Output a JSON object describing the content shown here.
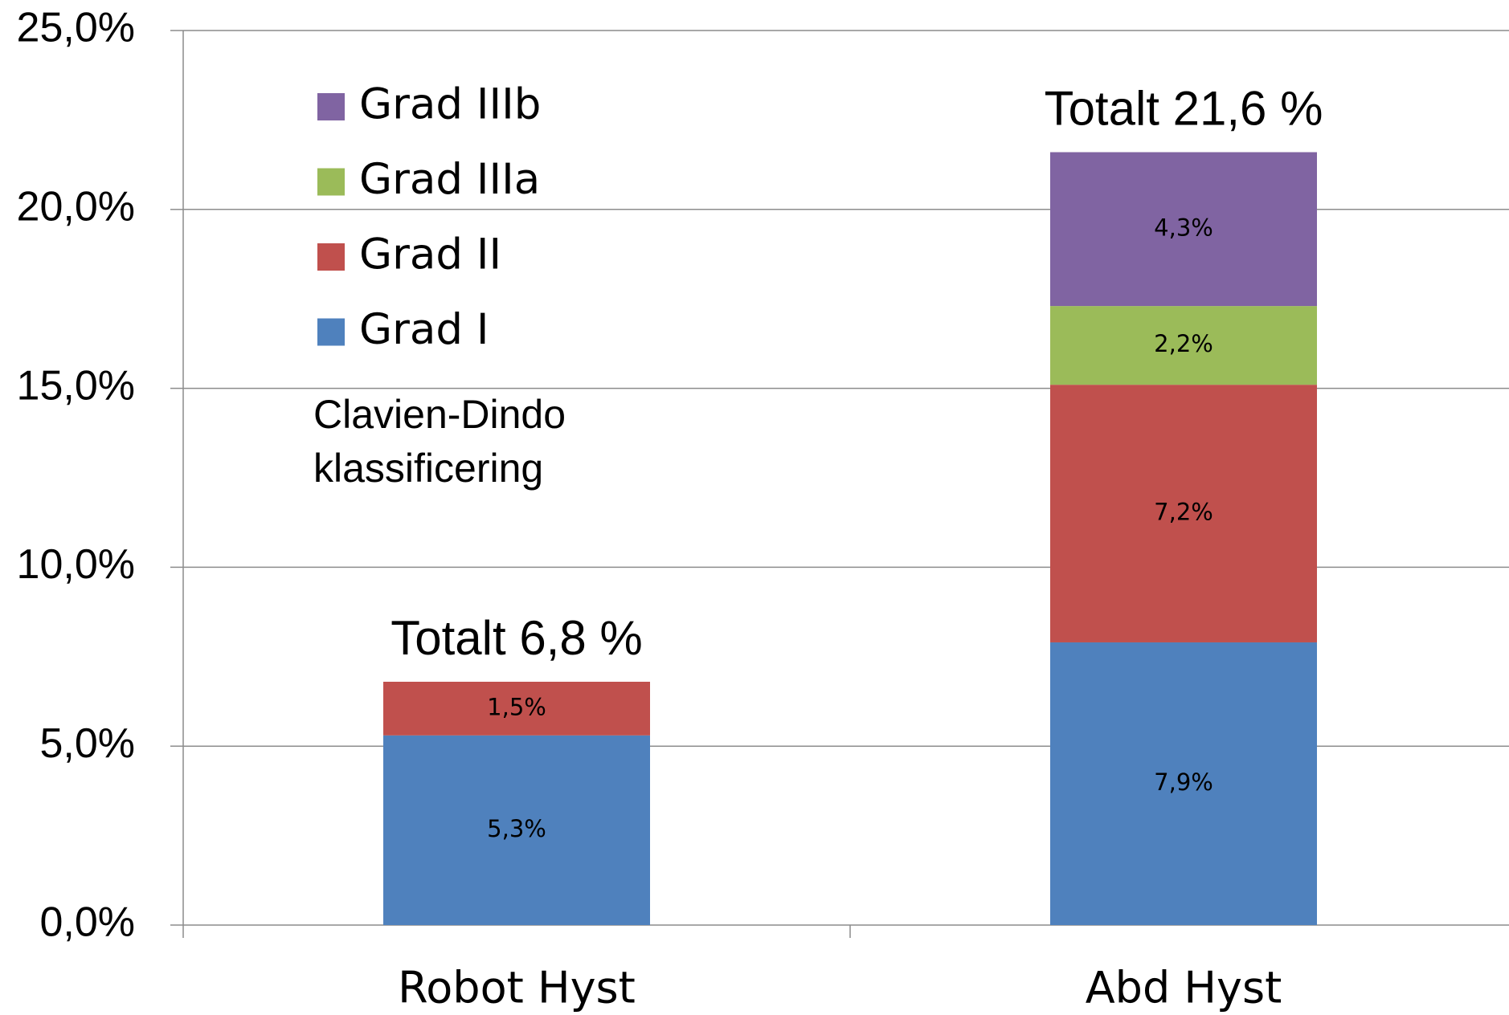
{
  "chart_data": {
    "type": "stacked_bar",
    "categories": [
      "Robot Hyst",
      "Abd Hyst"
    ],
    "series": [
      {
        "name": "Grad I",
        "color": "#4f81bd",
        "values": [
          5.3,
          7.9
        ],
        "value_labels": [
          "5,3%",
          "7,9%"
        ]
      },
      {
        "name": "Grad II",
        "color": "#c0504d",
        "values": [
          1.5,
          7.2
        ],
        "value_labels": [
          "1,5%",
          "7,2%"
        ]
      },
      {
        "name": "Grad IIIa",
        "color": "#9bbb59",
        "values": [
          null,
          2.2
        ],
        "value_labels": [
          null,
          "2,2%"
        ]
      },
      {
        "name": "Grad IIIb",
        "color": "#8064a2",
        "values": [
          null,
          4.3
        ],
        "value_labels": [
          null,
          "4,3%"
        ]
      }
    ],
    "totals": [
      "Totalt 6,8 %",
      "Totalt 21,6 %"
    ],
    "note": [
      "Clavien-Dindo",
      "klassificering"
    ],
    "ylim": [
      0,
      25
    ],
    "yticks": [
      {
        "value": 0,
        "label": "0,0%"
      },
      {
        "value": 5,
        "label": "5,0%"
      },
      {
        "value": 10,
        "label": "10,0%"
      },
      {
        "value": 15,
        "label": "15,0%"
      },
      {
        "value": 20,
        "label": "20,0%"
      },
      {
        "value": 25,
        "label": "25,0%"
      }
    ],
    "grid": true,
    "legend": "upper left"
  }
}
